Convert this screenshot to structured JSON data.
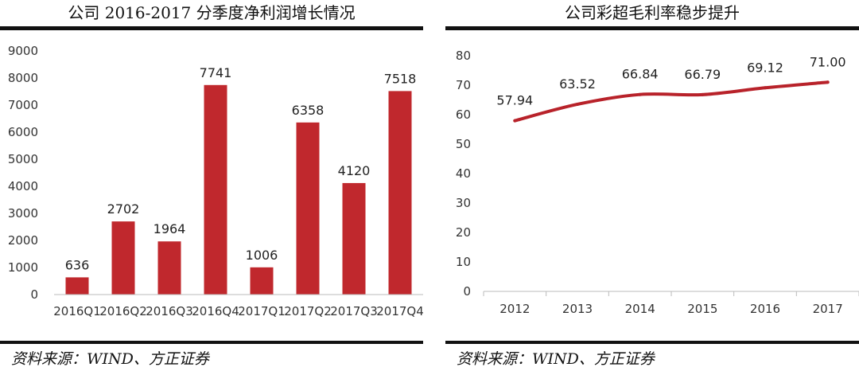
{
  "chart_data": [
    {
      "type": "bar",
      "title": "公司 2016-2017 分季度净利润增长情况",
      "categories": [
        "2016Q1",
        "2016Q2",
        "2016Q3",
        "2016Q4",
        "2017Q1",
        "2017Q2",
        "2017Q3",
        "2017Q4"
      ],
      "values": [
        636,
        2702,
        1964,
        7741,
        1006,
        6358,
        4120,
        7518
      ],
      "ylim": [
        0,
        9000
      ],
      "yticks": [
        0,
        1000,
        2000,
        3000,
        4000,
        5000,
        6000,
        7000,
        8000,
        9000
      ],
      "bar_color": "#c0282d",
      "grid": false,
      "source": "资料来源：WIND、方正证券"
    },
    {
      "type": "line",
      "title": "公司彩超毛利率稳步提升",
      "x": [
        "2012",
        "2013",
        "2014",
        "2015",
        "2016",
        "2017"
      ],
      "values": [
        57.94,
        63.52,
        66.84,
        66.79,
        69.12,
        71.0
      ],
      "value_labels": [
        "57.94",
        "63.52",
        "66.84",
        "66.79",
        "69.12",
        "71.00"
      ],
      "ylim": [
        0,
        80
      ],
      "yticks": [
        0,
        10,
        20,
        30,
        40,
        50,
        60,
        70,
        80
      ],
      "line_color": "#b8222a",
      "grid": false,
      "source": "资料来源：WIND、方正证券"
    }
  ]
}
